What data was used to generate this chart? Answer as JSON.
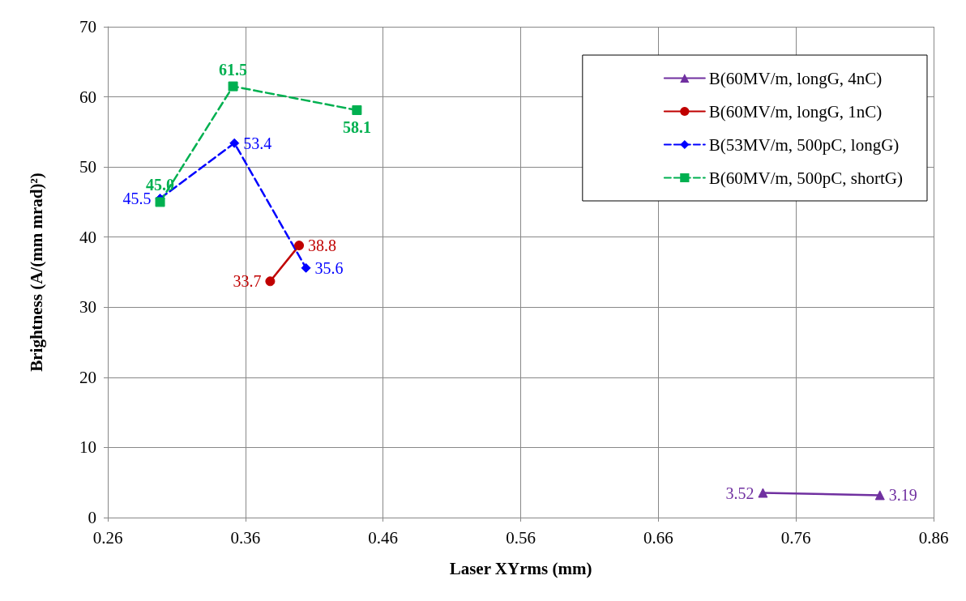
{
  "chart_data": {
    "type": "line",
    "xlabel": "Laser XYrms (mm)",
    "ylabel": "Brightness (A/(mm mrad)²)",
    "xlim": [
      0.26,
      0.86
    ],
    "xticks": [
      0.26,
      0.36,
      0.46,
      0.56,
      0.66,
      0.76,
      0.86
    ],
    "ylim": [
      0,
      70
    ],
    "yticks": [
      0,
      10,
      20,
      30,
      40,
      50,
      60,
      70
    ],
    "grid": true,
    "legend": "top right",
    "data_labels": true,
    "series": [
      {
        "name": "B(60MV/m, longG, 4nC)",
        "color": "#7030a0",
        "marker": "triangle",
        "line_style": "solid",
        "x": [
          0.736,
          0.821
        ],
        "values": [
          3.52,
          3.19
        ]
      },
      {
        "name": "B(60MV/m, longG, 1nC)",
        "color": "#c00000",
        "marker": "circle",
        "line_style": "solid",
        "x": [
          0.378,
          0.399
        ],
        "values": [
          33.7,
          38.8
        ]
      },
      {
        "name": "B(53MV/m, 500pC, longG)",
        "color": "#0000ff",
        "marker": "diamond",
        "line_style": "dashed",
        "x": [
          0.298,
          0.352,
          0.404
        ],
        "values": [
          45.5,
          53.4,
          35.6
        ]
      },
      {
        "name": "B(60MV/m, 500pC, shortG)",
        "color": "#00b050",
        "marker": "square",
        "line_style": "dashed",
        "x": [
          0.298,
          0.351,
          0.441
        ],
        "values": [
          45.0,
          61.5,
          58.1
        ],
        "value_labels": [
          "45.0",
          "61.5",
          "58.1"
        ]
      }
    ]
  }
}
